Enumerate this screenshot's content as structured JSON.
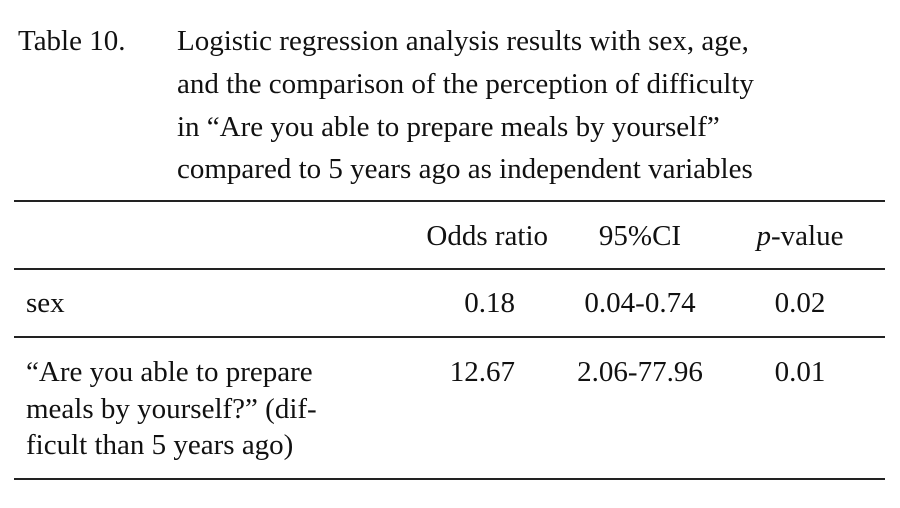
{
  "caption": {
    "label": "Table 10.",
    "lines": [
      "Logistic regression analysis results with sex, age,",
      "and the comparison of the perception of difficulty",
      "in “Are you able to prepare meals by yourself”",
      "compared to 5 years ago as independent variables"
    ]
  },
  "table": {
    "headers": [
      "Odds ratio",
      "95%CI",
      "p-value"
    ],
    "rows": [
      {
        "label": [
          "sex"
        ],
        "cells": [
          "0.18",
          "0.04-0.74",
          "0.02"
        ]
      },
      {
        "label": [
          "“Are you able to prepare",
          "meals by yourself?” (dif-",
          "ficult than 5 years ago)"
        ],
        "cells": [
          "12.67",
          "2.06-77.96",
          "0.01"
        ]
      }
    ]
  }
}
